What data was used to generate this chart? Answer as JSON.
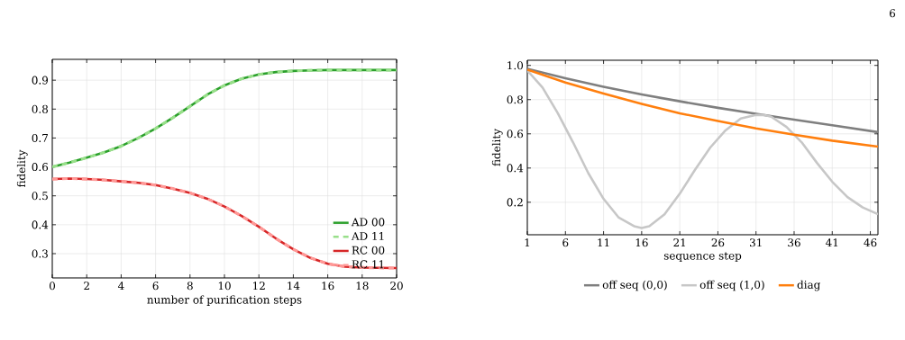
{
  "chart_data": [
    {
      "type": "line",
      "xlabel": "number of purification steps",
      "ylabel": "fidelity",
      "x": [
        0,
        1,
        2,
        3,
        4,
        5,
        6,
        7,
        8,
        9,
        10,
        11,
        12,
        13,
        14,
        15,
        16,
        17,
        18,
        19,
        20
      ],
      "series": [
        {
          "name": "AD 00",
          "color": "#2ca02c",
          "line_style": "solid",
          "values": [
            0.6,
            0.615,
            0.632,
            0.65,
            0.672,
            0.7,
            0.733,
            0.77,
            0.81,
            0.85,
            0.882,
            0.905,
            0.92,
            0.928,
            0.932,
            0.934,
            0.935,
            0.935,
            0.935,
            0.935,
            0.935
          ]
        },
        {
          "name": "AD 11",
          "color": "#98df8a",
          "line_style": "dashed",
          "values": [
            0.6,
            0.615,
            0.632,
            0.65,
            0.672,
            0.7,
            0.733,
            0.77,
            0.81,
            0.85,
            0.882,
            0.905,
            0.92,
            0.928,
            0.932,
            0.934,
            0.935,
            0.935,
            0.935,
            0.935,
            0.935
          ]
        },
        {
          "name": "RC 00",
          "color": "#d62728",
          "line_style": "solid",
          "values": [
            0.558,
            0.56,
            0.558,
            0.555,
            0.55,
            0.545,
            0.537,
            0.525,
            0.51,
            0.49,
            0.463,
            0.43,
            0.393,
            0.352,
            0.315,
            0.285,
            0.265,
            0.255,
            0.252,
            0.251,
            0.25
          ]
        },
        {
          "name": "RC 11",
          "color": "#ff9896",
          "line_style": "dashed",
          "values": [
            0.558,
            0.56,
            0.558,
            0.555,
            0.55,
            0.545,
            0.537,
            0.525,
            0.51,
            0.49,
            0.463,
            0.43,
            0.393,
            0.352,
            0.315,
            0.285,
            0.265,
            0.255,
            0.252,
            0.251,
            0.25
          ]
        }
      ],
      "xlim": [
        0,
        20
      ],
      "ylim": [
        0.216,
        0.972
      ],
      "xticks": [
        0,
        2,
        4,
        6,
        8,
        10,
        12,
        14,
        16,
        18,
        20
      ],
      "yticks": [
        0.3,
        0.4,
        0.5,
        0.6,
        0.7,
        0.8,
        0.9
      ],
      "grid": true,
      "legend": "bottom right"
    },
    {
      "type": "line",
      "xlabel": "sequence step",
      "ylabel": "fidelity",
      "annotations": [
        "6"
      ],
      "series": [
        {
          "name": "off seq (0,0)",
          "color": "#7f7f7f",
          "x": [
            1,
            6,
            11,
            16,
            21,
            26,
            31,
            36,
            41,
            47
          ],
          "values": [
            0.98,
            0.925,
            0.875,
            0.83,
            0.79,
            0.752,
            0.717,
            0.683,
            0.65,
            0.61
          ]
        },
        {
          "name": "off seq (1,0)",
          "color": "#c7c7c7",
          "x": [
            1,
            3,
            5,
            7,
            9,
            11,
            13,
            15,
            16,
            17,
            19,
            21,
            23,
            25,
            27,
            29,
            31,
            32,
            33,
            35,
            37,
            39,
            41,
            43,
            45,
            47
          ],
          "values": [
            0.97,
            0.87,
            0.72,
            0.55,
            0.37,
            0.22,
            0.11,
            0.06,
            0.05,
            0.06,
            0.13,
            0.25,
            0.39,
            0.52,
            0.62,
            0.69,
            0.71,
            0.71,
            0.7,
            0.64,
            0.55,
            0.43,
            0.32,
            0.23,
            0.17,
            0.13
          ]
        },
        {
          "name": "diag",
          "color": "#ff7f0e",
          "x": [
            1,
            6,
            11,
            16,
            21,
            26,
            31,
            36,
            41,
            47
          ],
          "values": [
            0.975,
            0.9,
            0.835,
            0.775,
            0.72,
            0.675,
            0.632,
            0.595,
            0.56,
            0.525
          ]
        }
      ],
      "xlim": [
        1,
        47
      ],
      "ylim": [
        0.01,
        1.03
      ],
      "xticks": [
        1,
        6,
        11,
        16,
        21,
        26,
        31,
        36,
        41,
        46
      ],
      "yticks": [
        0.2,
        0.4,
        0.6,
        0.8,
        {
          "value": 1.0,
          "label": "1.0"
        }
      ],
      "grid": true,
      "legend": "bottom"
    }
  ]
}
